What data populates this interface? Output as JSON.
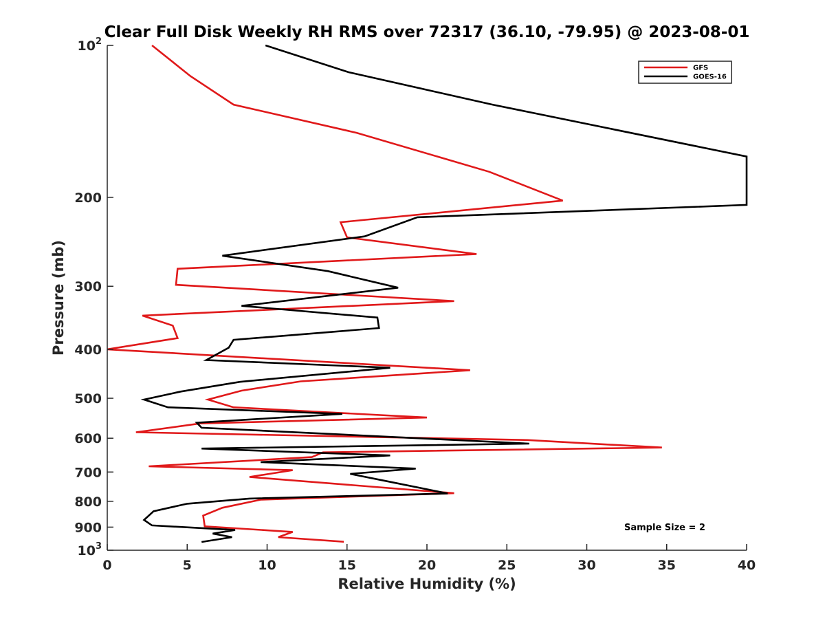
{
  "chart_data": {
    "type": "line",
    "title": "Clear Full Disk Weekly RH RMS over 72317 (36.10, -79.95) @ 2023-08-01",
    "xlabel": "Relative Humidity (%)",
    "ylabel": "Pressure (mb)",
    "xlim": [
      0,
      40
    ],
    "ylim": [
      100,
      1000
    ],
    "y_scale": "log",
    "y_reversed": true,
    "x_ticks": [
      0,
      5,
      10,
      15,
      20,
      25,
      30,
      35,
      40
    ],
    "x_tick_labels": [
      "0",
      "5",
      "10",
      "15",
      "20",
      "25",
      "30",
      "35",
      "40"
    ],
    "y_ticks": [
      100,
      200,
      300,
      400,
      500,
      600,
      700,
      800,
      900,
      1000
    ],
    "y_tick_labels": [
      {
        "base": "10",
        "sup": "2"
      },
      {
        "base": "200",
        "sup": ""
      },
      {
        "base": "300",
        "sup": ""
      },
      {
        "base": "400",
        "sup": ""
      },
      {
        "base": "500",
        "sup": ""
      },
      {
        "base": "600",
        "sup": ""
      },
      {
        "base": "700",
        "sup": ""
      },
      {
        "base": "800",
        "sup": ""
      },
      {
        "base": "900",
        "sup": ""
      },
      {
        "base": "10",
        "sup": "3"
      }
    ],
    "grid": false,
    "legend_position": "top-right",
    "annotation": "Sample Size = 2",
    "series": [
      {
        "name": "GFS",
        "color": "#e0191a",
        "points": [
          [
            2.8,
            100
          ],
          [
            5.2,
            115
          ],
          [
            7.9,
            131
          ],
          [
            15.6,
            149
          ],
          [
            23.9,
            178
          ],
          [
            28.5,
            203
          ],
          [
            14.6,
            224
          ],
          [
            15.0,
            240
          ],
          [
            23.1,
            259
          ],
          [
            4.4,
            277
          ],
          [
            4.3,
            298
          ],
          [
            21.7,
            321
          ],
          [
            2.2,
            343
          ],
          [
            4.1,
            359
          ],
          [
            4.4,
            380
          ],
          [
            0.0,
            400
          ],
          [
            22.7,
            440
          ],
          [
            12.1,
            463
          ],
          [
            8.4,
            483
          ],
          [
            6.3,
            503
          ],
          [
            7.9,
            521
          ],
          [
            20.0,
            546
          ],
          [
            5.8,
            561
          ],
          [
            1.8,
            584
          ],
          [
            26.3,
            605
          ],
          [
            34.7,
            626
          ],
          [
            13.5,
            640
          ],
          [
            12.8,
            654
          ],
          [
            2.6,
            682
          ],
          [
            11.6,
            694
          ],
          [
            8.9,
            716
          ],
          [
            21.7,
            771
          ],
          [
            9.6,
            794
          ],
          [
            7.2,
            824
          ],
          [
            6.0,
            854
          ],
          [
            6.1,
            897
          ],
          [
            11.6,
            920
          ],
          [
            10.7,
            942
          ],
          [
            14.8,
            962
          ]
        ]
      },
      {
        "name": "GOES-16",
        "color": "#000000",
        "points": [
          [
            9.9,
            100
          ],
          [
            15.1,
            113
          ],
          [
            24.1,
            131
          ],
          [
            40.0,
            166
          ],
          [
            40.0,
            207
          ],
          [
            19.4,
            219
          ],
          [
            16.1,
            239
          ],
          [
            7.2,
            261
          ],
          [
            13.8,
            280
          ],
          [
            18.2,
            302
          ],
          [
            8.4,
            328
          ],
          [
            16.9,
            346
          ],
          [
            17.0,
            363
          ],
          [
            7.9,
            383
          ],
          [
            7.6,
            397
          ],
          [
            6.2,
            420
          ],
          [
            17.7,
            435
          ],
          [
            8.3,
            464
          ],
          [
            4.6,
            485
          ],
          [
            2.3,
            503
          ],
          [
            3.8,
            521
          ],
          [
            14.7,
            537
          ],
          [
            5.6,
            559
          ],
          [
            5.9,
            572
          ],
          [
            26.4,
            615
          ],
          [
            5.9,
            629
          ],
          [
            17.7,
            649
          ],
          [
            9.6,
            669
          ],
          [
            19.3,
            689
          ],
          [
            15.2,
            706
          ],
          [
            17.5,
            730
          ],
          [
            21.3,
            772
          ],
          [
            8.9,
            790
          ],
          [
            5.0,
            809
          ],
          [
            2.9,
            837
          ],
          [
            2.3,
            871
          ],
          [
            2.8,
            893
          ],
          [
            8.0,
            912
          ],
          [
            6.6,
            927
          ],
          [
            7.8,
            942
          ],
          [
            5.9,
            963
          ]
        ]
      }
    ]
  }
}
